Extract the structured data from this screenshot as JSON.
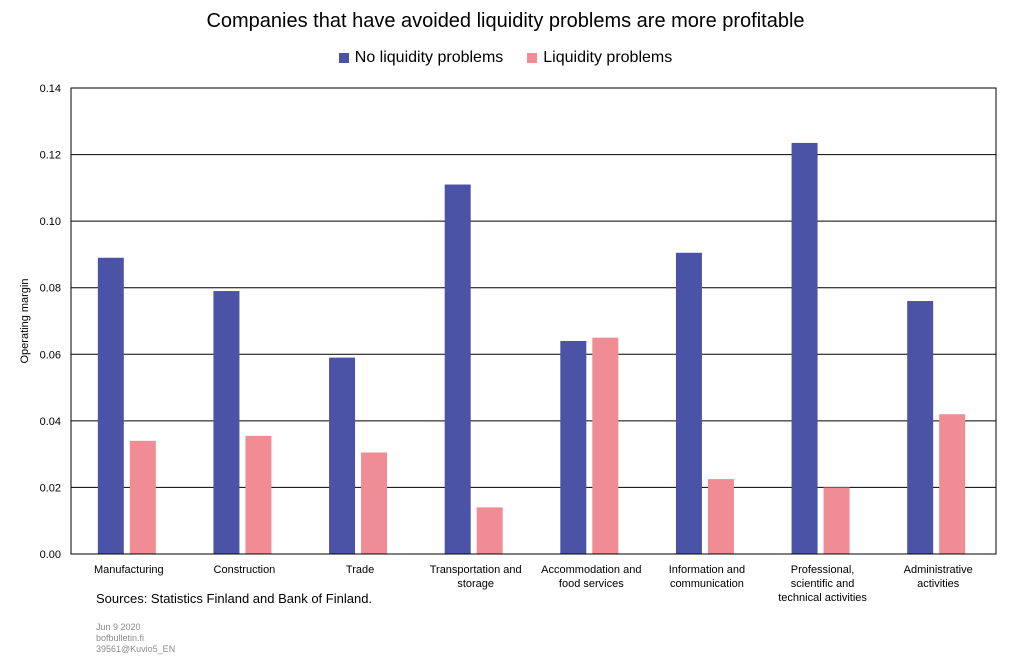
{
  "chart_data": {
    "type": "bar",
    "title": "Companies that have avoided liquidity problems are more profitable",
    "ylabel": "Operating margin",
    "xlabel": "",
    "ylim": [
      0,
      0.14
    ],
    "yticks": [
      "0.00",
      "0.02",
      "0.04",
      "0.06",
      "0.08",
      "0.10",
      "0.12",
      "0.14"
    ],
    "grid": true,
    "legend_position": "top-center",
    "categories": [
      [
        "Manufacturing"
      ],
      [
        "Construction"
      ],
      [
        "Trade"
      ],
      [
        "Transportation and",
        "storage"
      ],
      [
        "Accommodation and",
        "food services"
      ],
      [
        "Information and",
        "communication"
      ],
      [
        "Professional,",
        "scientific and",
        "technical activities"
      ],
      [
        "Administrative",
        "activities"
      ]
    ],
    "series": [
      {
        "name": "No liquidity problems",
        "color": "#4B53A6",
        "values": [
          0.089,
          0.079,
          0.059,
          0.111,
          0.064,
          0.0905,
          0.1235,
          0.076
        ]
      },
      {
        "name": "Liquidity problems",
        "color": "#F08C93",
        "values": [
          0.034,
          0.0355,
          0.0305,
          0.014,
          0.065,
          0.0225,
          0.02,
          0.042
        ]
      }
    ]
  },
  "sources": "Sources: Statistics Finland and Bank of Finland.",
  "footer": {
    "date": "Jun 9 2020",
    "site": "bofbulletin.fi",
    "id": "39561@Kuvio5_EN"
  }
}
